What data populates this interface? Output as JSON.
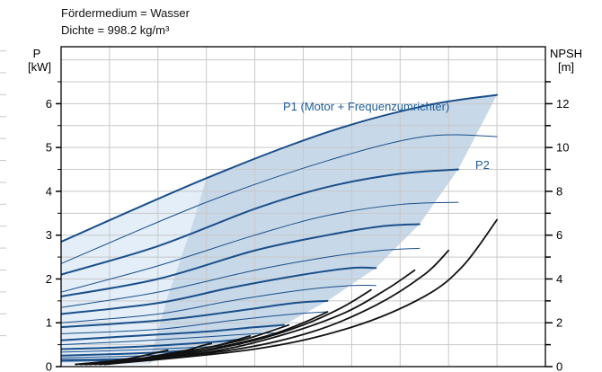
{
  "chart_data": {
    "type": "line",
    "notes": [
      "Fördermedium = Wasser",
      "Dichte = 998.2 kg/m³"
    ],
    "left_axis": {
      "label": [
        "P",
        "[kW]"
      ],
      "range": [
        0,
        7.3
      ],
      "ticks": [
        0,
        1,
        2,
        3,
        4,
        5,
        6
      ]
    },
    "right_axis": {
      "label": [
        "NPSH",
        "[m]"
      ],
      "range": [
        0,
        14.6
      ],
      "ticks": [
        0,
        2,
        4,
        6,
        8,
        10,
        12
      ]
    },
    "x_range": [
      0,
      100
    ],
    "grid": true,
    "colors": {
      "p1": "#1a4f8a",
      "p2": "#1a4f8a",
      "envelope": "#c7d8e8",
      "left_region": "#e3eef8",
      "npsh": "#111111",
      "grid": "#c8c8c8",
      "axis": "#000000",
      "label": "#1f5c99"
    },
    "curve_labels": {
      "p1": "P1 (Motor + Frequenzumrichter)",
      "p2": "P2"
    },
    "series": [
      {
        "kind": "p1",
        "x": [
          0,
          30,
          55,
          75,
          90
        ],
        "y": [
          2.85,
          4.3,
          5.35,
          5.95,
          6.2
        ]
      },
      {
        "kind": "p2",
        "x": [
          0,
          30,
          55,
          75,
          90
        ],
        "y": [
          2.35,
          3.75,
          4.7,
          5.25,
          5.25
        ]
      },
      {
        "kind": "p1",
        "x": [
          0,
          20,
          40,
          55,
          70,
          82
        ],
        "y": [
          2.1,
          2.75,
          3.6,
          4.1,
          4.4,
          4.5
        ]
      },
      {
        "kind": "p2",
        "x": [
          0,
          20,
          40,
          55,
          70,
          82
        ],
        "y": [
          1.7,
          2.3,
          3.0,
          3.45,
          3.7,
          3.75
        ]
      },
      {
        "kind": "p1",
        "x": [
          0,
          20,
          40,
          55,
          66,
          74
        ],
        "y": [
          1.6,
          2.0,
          2.65,
          3.0,
          3.2,
          3.25
        ]
      },
      {
        "kind": "p2",
        "x": [
          0,
          20,
          40,
          55,
          66,
          74
        ],
        "y": [
          1.35,
          1.7,
          2.2,
          2.5,
          2.65,
          2.7
        ]
      },
      {
        "kind": "p1",
        "x": [
          0,
          20,
          35,
          50,
          60,
          65
        ],
        "y": [
          1.2,
          1.45,
          1.8,
          2.1,
          2.25,
          2.25
        ]
      },
      {
        "kind": "p2",
        "x": [
          0,
          20,
          35,
          50,
          60,
          65
        ],
        "y": [
          1.0,
          1.2,
          1.5,
          1.75,
          1.85,
          1.85
        ]
      },
      {
        "kind": "p1",
        "x": [
          0,
          20,
          35,
          48,
          55
        ],
        "y": [
          0.9,
          1.05,
          1.25,
          1.45,
          1.5
        ]
      },
      {
        "kind": "p2",
        "x": [
          0,
          20,
          35,
          48,
          55
        ],
        "y": [
          0.75,
          0.85,
          1.05,
          1.2,
          1.25
        ]
      },
      {
        "kind": "p1",
        "x": [
          0,
          15,
          30,
          40,
          46
        ],
        "y": [
          0.6,
          0.7,
          0.8,
          0.9,
          0.95
        ]
      },
      {
        "kind": "p2",
        "x": [
          0,
          15,
          30,
          40,
          46
        ],
        "y": [
          0.5,
          0.58,
          0.68,
          0.75,
          0.78
        ]
      },
      {
        "kind": "p1",
        "x": [
          0,
          15,
          30,
          37
        ],
        "y": [
          0.4,
          0.45,
          0.55,
          0.62
        ]
      },
      {
        "kind": "p2",
        "x": [
          0,
          15,
          30,
          37
        ],
        "y": [
          0.33,
          0.38,
          0.45,
          0.5
        ]
      },
      {
        "kind": "p1",
        "x": [
          0,
          15,
          24,
          28
        ],
        "y": [
          0.25,
          0.3,
          0.35,
          0.38
        ]
      },
      {
        "kind": "p2",
        "x": [
          0,
          15,
          24,
          28
        ],
        "y": [
          0.2,
          0.24,
          0.28,
          0.3
        ]
      },
      {
        "kind": "p1",
        "x": [
          0,
          12,
          20
        ],
        "y": [
          0.15,
          0.17,
          0.2
        ]
      },
      {
        "kind": "p2",
        "x": [
          0,
          12,
          20
        ],
        "y": [
          0.12,
          0.14,
          0.16
        ]
      },
      {
        "kind": "npsh",
        "x": [
          9,
          40,
          60,
          75,
          83,
          90
        ],
        "y": [
          0.1,
          0.8,
          1.8,
          3.2,
          4.6,
          6.7
        ]
      },
      {
        "kind": "npsh",
        "x": [
          8,
          35,
          52,
          65,
          75,
          80
        ],
        "y": [
          0.1,
          0.75,
          1.6,
          2.8,
          4.2,
          5.3
        ]
      },
      {
        "kind": "npsh",
        "x": [
          7,
          30,
          45,
          58,
          67,
          73
        ],
        "y": [
          0.1,
          0.65,
          1.4,
          2.4,
          3.5,
          4.4
        ]
      },
      {
        "kind": "npsh",
        "x": [
          6,
          25,
          40,
          50,
          58,
          64
        ],
        "y": [
          0.1,
          0.55,
          1.2,
          1.9,
          2.7,
          3.5
        ]
      },
      {
        "kind": "npsh",
        "x": [
          5,
          22,
          35,
          44,
          50,
          55
        ],
        "y": [
          0.1,
          0.45,
          1.0,
          1.5,
          2.0,
          2.5
        ]
      },
      {
        "kind": "npsh",
        "x": [
          5,
          20,
          30,
          38,
          43,
          47
        ],
        "y": [
          0.1,
          0.4,
          0.85,
          1.25,
          1.6,
          1.9
        ]
      },
      {
        "kind": "npsh",
        "x": [
          4,
          17,
          26,
          32,
          36,
          39
        ],
        "y": [
          0.1,
          0.35,
          0.7,
          0.95,
          1.2,
          1.4
        ]
      },
      {
        "kind": "npsh",
        "x": [
          3,
          14,
          21,
          26,
          29,
          31
        ],
        "y": [
          0.1,
          0.3,
          0.55,
          0.75,
          0.95,
          1.05
        ]
      },
      {
        "kind": "npsh",
        "x": [
          3,
          12,
          17,
          20,
          22
        ],
        "y": [
          0.1,
          0.3,
          0.5,
          0.65,
          0.75
        ]
      }
    ]
  }
}
